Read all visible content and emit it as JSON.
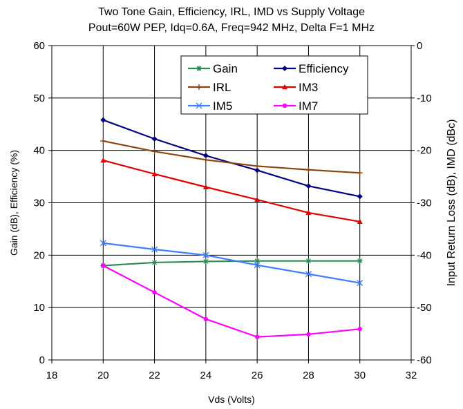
{
  "chart_data": {
    "type": "line",
    "title": "Two Tone Gain, Efficiency, IRL, IMD vs Supply Voltage",
    "subtitle": "Pout=60W PEP, Idq=0.6A, Freq=942 MHz, Delta F=1 MHz",
    "xlabel": "Vds (Volts)",
    "ylabel_left": "Gain (dB), Efficiency (%)",
    "ylabel_right": "Input Return Loss (dB), IMD (dBc)",
    "xlim": [
      18,
      32
    ],
    "xticks": [
      "18",
      "20",
      "22",
      "24",
      "26",
      "28",
      "30",
      "32"
    ],
    "ylim_left": [
      0,
      60
    ],
    "yticks_left": [
      "0",
      "10",
      "20",
      "30",
      "40",
      "50",
      "60"
    ],
    "ylim_right": [
      -60,
      0
    ],
    "yticks_right": [
      "-60",
      "-50",
      "-40",
      "-30",
      "-20",
      "-10",
      "0"
    ],
    "grid": true,
    "legend_position": "top-right",
    "series": [
      {
        "name": "Gain",
        "axis": "left",
        "color": "#2e8b57",
        "marker": "star",
        "x": [
          20,
          22,
          24,
          26,
          28,
          30
        ],
        "values": [
          18.0,
          18.6,
          18.8,
          18.9,
          18.9,
          18.9
        ]
      },
      {
        "name": "Efficiency",
        "axis": "left",
        "color": "#000080",
        "marker": "diamond",
        "x": [
          20,
          22,
          24,
          26,
          28,
          30
        ],
        "values": [
          45.8,
          42.2,
          39.0,
          36.2,
          33.2,
          31.2
        ]
      },
      {
        "name": "IRL",
        "axis": "right",
        "color": "#8b4513",
        "marker": "plus",
        "x": [
          20,
          22,
          24,
          26,
          28,
          30
        ],
        "values": [
          -18.2,
          -20.2,
          -21.8,
          -23.0,
          -23.7,
          -24.3
        ]
      },
      {
        "name": "IM3",
        "axis": "right",
        "color": "#e00000",
        "marker": "triangle",
        "x": [
          20,
          22,
          24,
          26,
          28,
          30
        ],
        "values": [
          -21.9,
          -24.5,
          -27.0,
          -29.4,
          -31.9,
          -33.6
        ]
      },
      {
        "name": "IM5",
        "axis": "right",
        "color": "#3f7fff",
        "marker": "x",
        "x": [
          20,
          22,
          24,
          26,
          28,
          30
        ],
        "values": [
          -37.7,
          -38.9,
          -40.0,
          -41.9,
          -43.6,
          -45.3
        ]
      },
      {
        "name": "IM7",
        "axis": "right",
        "color": "#ff00ff",
        "marker": "circle",
        "x": [
          20,
          22,
          24,
          26,
          28,
          30
        ],
        "values": [
          -42.0,
          -47.1,
          -52.2,
          -55.6,
          -55.1,
          -54.1
        ]
      }
    ]
  }
}
